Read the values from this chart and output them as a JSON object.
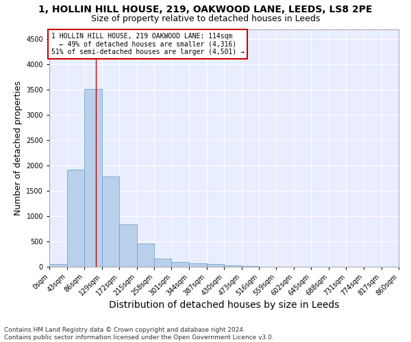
{
  "title_line1": "1, HOLLIN HILL HOUSE, 219, OAKWOOD LANE, LEEDS, LS8 2PE",
  "title_line2": "Size of property relative to detached houses in Leeds",
  "xlabel": "Distribution of detached houses by size in Leeds",
  "ylabel": "Number of detached properties",
  "footer_line1": "Contains HM Land Registry data © Crown copyright and database right 2024.",
  "footer_line2": "Contains public sector information licensed under the Open Government Licence v3.0.",
  "annotation_line1": "1 HOLLIN HILL HOUSE, 219 OAKWOOD LANE: 114sqm",
  "annotation_line2": "← 49% of detached houses are smaller (4,316)",
  "annotation_line3": "51% of semi-detached houses are larger (4,501) →",
  "property_size_sqm": 114,
  "bin_edges": [
    0,
    43,
    86,
    129,
    172,
    215,
    258,
    301,
    344,
    387,
    430,
    473,
    516,
    559,
    602,
    645,
    688,
    731,
    774,
    817,
    860
  ],
  "bar_values": [
    50,
    1920,
    3510,
    1780,
    840,
    455,
    160,
    95,
    65,
    55,
    30,
    15,
    5,
    5,
    5,
    3,
    2,
    2,
    1,
    1
  ],
  "bar_color": "#b8d0ea",
  "bar_edge_color": "#6699cc",
  "red_line_x": 114,
  "ylim": [
    0,
    4700
  ],
  "yticks": [
    0,
    500,
    1000,
    1500,
    2000,
    2500,
    3000,
    3500,
    4000,
    4500
  ],
  "xlim": [
    0,
    860
  ],
  "background_color": "#e8eeff",
  "grid_color": "#ffffff",
  "annotation_box_color": "#ffffff",
  "annotation_box_edge": "#cc0000",
  "red_line_color": "#cc0000",
  "title_fontsize": 10,
  "subtitle_fontsize": 9,
  "axis_label_fontsize": 9,
  "tick_label_fontsize": 7,
  "annotation_fontsize": 7,
  "footer_fontsize": 6.5
}
